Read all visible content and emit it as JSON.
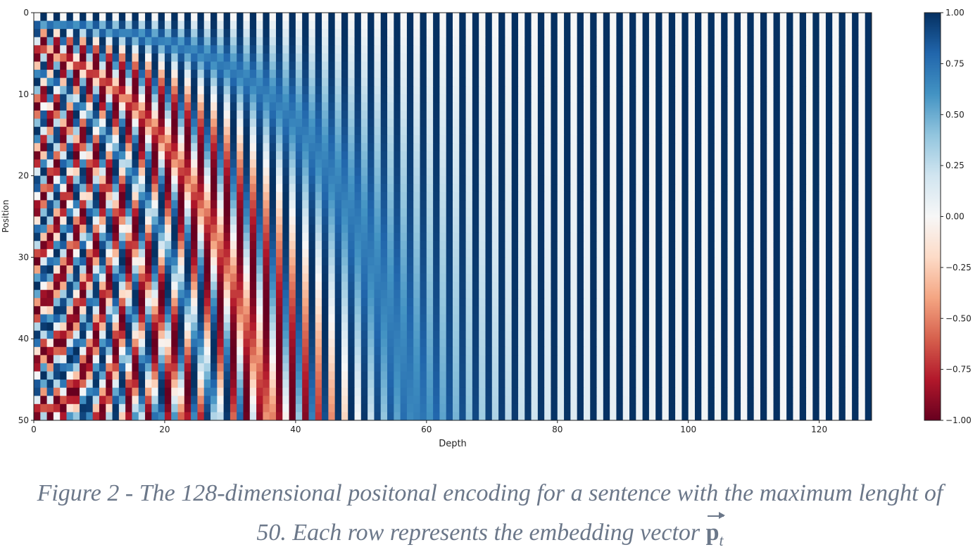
{
  "chart_data": {
    "type": "heatmap",
    "title": "",
    "xlabel": "Depth",
    "ylabel": "Position",
    "rows": 50,
    "cols": 128,
    "xlim": [
      0,
      128
    ],
    "ylim": [
      50,
      0
    ],
    "xticks": [
      "0",
      "20",
      "40",
      "60",
      "80",
      "100",
      "120"
    ],
    "yticks": [
      "0",
      "10",
      "20",
      "30",
      "40",
      "50"
    ],
    "colorbar": {
      "range": [
        -1,
        1
      ],
      "ticks": [
        "1.00",
        "0.75",
        "0.50",
        "0.25",
        "0.00",
        "−0.25",
        "−0.50",
        "−0.75",
        "−1.00"
      ],
      "colormap": "RdBu",
      "colors": [
        "#67001f",
        "#b2182b",
        "#d6604d",
        "#f4a582",
        "#fddbc7",
        "#f7f7f7",
        "#d1e5f0",
        "#92c5de",
        "#4393c3",
        "#2166ac",
        "#053061"
      ]
    },
    "values": "sinusoidal positional encoding: even depth = sin(pos / 10000^(depth/128)), odd depth = cos(pos / 10000^((depth-1)/128))"
  },
  "caption": {
    "line1": "Figure 2 - The 128-dimensional positonal encoding for a sentence with the maximum lenght of",
    "line2": "50. Each row represents the embedding vector",
    "vector_symbol": "p",
    "vector_subscript": "t"
  }
}
